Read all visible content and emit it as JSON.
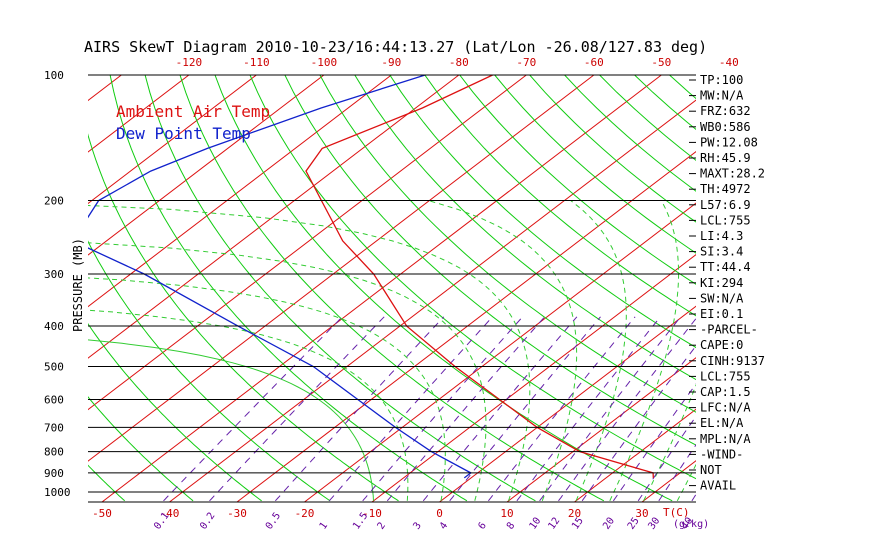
{
  "title": "AIRS SkewT Diagram 2010-10-23/16:44:13.27 (Lat/Lon -26.08/127.83 deg)",
  "y_axis_label": "PRESSURE (MB)",
  "x_axis_label": "T(C)",
  "mixing_axis_label": "(g/kg)",
  "legend": [
    {
      "label": "Ambient Air Temp",
      "color": "#dd1111"
    },
    {
      "label": "Dew Point Temp",
      "color": "#1122cc"
    }
  ],
  "indices": [
    "TP:100",
    "MW:N/A",
    "FRZ:632",
    "WB0:586",
    "PW:12.08",
    "RH:45.9",
    "MAXT:28.2",
    "TH:4972",
    "L57:6.9",
    "LCL:755",
    "LI:4.3",
    "SI:3.4",
    "TT:44.4",
    "KI:294",
    "SW:N/A",
    "EI:0.1",
    "-PARCEL-",
    "CAPE:0",
    "CINH:9137",
    "LCL:755",
    "CAP:1.5",
    "LFC:N/A",
    "EL:N/A",
    "MPL:N/A",
    "-WIND-",
    "NOT",
    "AVAIL"
  ],
  "colors": {
    "isotherm": "#dd1111",
    "dry_adiabat": "#11cc11",
    "moist_adiabat": "#33cc33",
    "mixing_ratio": "#6622aa",
    "temperature": "#dd1111",
    "dewpoint": "#1122cc",
    "isobar": "#000000"
  },
  "chart_data": {
    "type": "line",
    "title": "AIRS SkewT Diagram 2010-10-23/16:44:13.27 (Lat/Lon -26.08/127.83 deg)",
    "ylabel": "PRESSURE (MB)",
    "xlabel": "T(C)",
    "y_scale": "log-pressure",
    "pressure_ticks": [
      100,
      200,
      300,
      400,
      500,
      600,
      700,
      800,
      900,
      1000
    ],
    "bottom_temp_ticks": [
      -50,
      -40,
      -30,
      -20,
      -10,
      0,
      10,
      20,
      30
    ],
    "top_temp_ticks": [
      -120,
      -110,
      -100,
      -90,
      -80,
      -70,
      -60,
      -50,
      -40
    ],
    "mixing_ratio_ticks": [
      "0.1",
      "0.2",
      "0.5",
      "1",
      "1.5",
      "2",
      "3",
      "4",
      "6",
      "8",
      "10",
      "12",
      "15",
      "20",
      "25",
      "30",
      "40"
    ],
    "series": [
      {
        "name": "Ambient Air Temp",
        "pressure": [
          100,
          120,
          150,
          170,
          200,
          250,
          300,
          400,
          500,
          600,
          700,
          800,
          900,
          925
        ],
        "temp": [
          -75,
          -79,
          -86,
          -84,
          -76,
          -65,
          -54,
          -39,
          -24,
          -11,
          0,
          11,
          26,
          27
        ]
      },
      {
        "name": "Dew Point Temp",
        "pressure": [
          100,
          120,
          150,
          170,
          200,
          250,
          300,
          400,
          500,
          600,
          700,
          800,
          900,
          925
        ],
        "temp": [
          -85,
          -94,
          -103,
          -107,
          -109,
          -105,
          -88,
          -64,
          -45,
          -32,
          -21,
          -11,
          -1,
          -1
        ]
      }
    ]
  }
}
